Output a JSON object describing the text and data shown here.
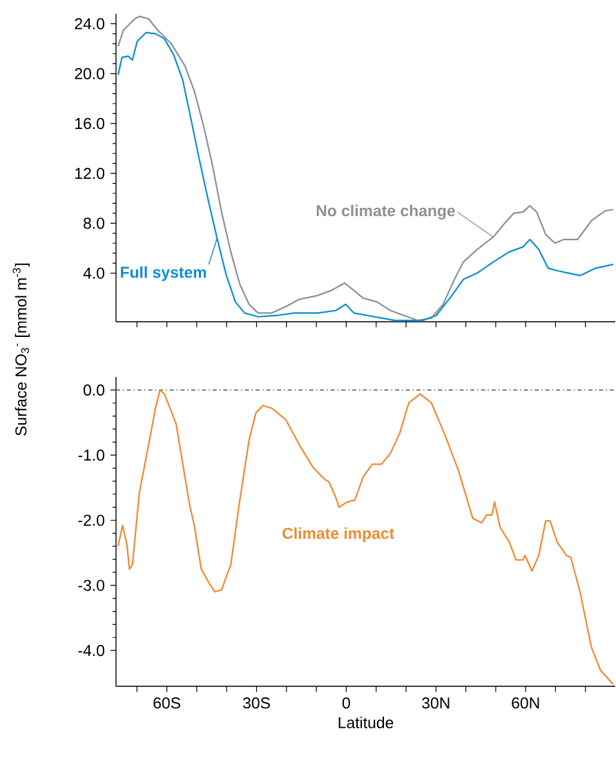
{
  "chart_data": [
    {
      "type": "line",
      "xlim": [
        -77,
        90
      ],
      "ylim": [
        0.1,
        24.8
      ],
      "tick_labels": "y",
      "marker": "none",
      "line_style": "solid",
      "xticks": [
        {
          "value": -70,
          "label": null
        },
        {
          "value": -60,
          "label": null
        },
        {
          "value": -50,
          "label": null
        },
        {
          "value": -40,
          "label": null
        },
        {
          "value": -30,
          "label": null
        },
        {
          "value": -20,
          "label": null
        },
        {
          "value": -10,
          "label": null
        },
        {
          "value": 0,
          "label": null
        },
        {
          "value": 10,
          "label": null
        },
        {
          "value": 20,
          "label": null
        },
        {
          "value": 30,
          "label": null
        },
        {
          "value": 40,
          "label": null
        },
        {
          "value": 50,
          "label": null
        },
        {
          "value": 60,
          "label": null
        },
        {
          "value": 70,
          "label": null
        },
        {
          "value": 80,
          "label": null
        }
      ],
      "yticks": [
        {
          "value": 4,
          "label": "4.0"
        },
        {
          "value": 8,
          "label": "8.0"
        },
        {
          "value": 12,
          "label": "12.0"
        },
        {
          "value": 16,
          "label": "16.0"
        },
        {
          "value": 20,
          "label": "20.0"
        },
        {
          "value": 24,
          "label": "24.0"
        }
      ],
      "series": [
        {
          "name": "No climate change",
          "color": "#8e9096",
          "x": [
            -76.3,
            -74.5,
            -70.7,
            -69.2,
            -66.1,
            -63.1,
            -58.5,
            -53.9,
            -50.8,
            -47.8,
            -44.7,
            -41.7,
            -38.6,
            -35.6,
            -32.5,
            -29.5,
            -24.9,
            -20.3,
            -15.7,
            -9.6,
            -5.1,
            -0.5,
            2.6,
            5.6,
            10.2,
            14.8,
            19.4,
            24.0,
            28.5,
            32.4,
            36.2,
            39.2,
            43.8,
            49.2,
            53.0,
            56.0,
            59.1,
            61.4,
            63.7,
            66.7,
            69.8,
            72.8,
            77.4,
            82.0,
            86.6,
            89.3
          ],
          "values": [
            22.2,
            23.5,
            24.4,
            24.6,
            24.4,
            23.5,
            22.4,
            20.6,
            18.6,
            15.9,
            12.6,
            8.9,
            5.7,
            3.1,
            1.5,
            0.8,
            0.8,
            1.3,
            1.9,
            2.2,
            2.6,
            3.2,
            2.6,
            2.0,
            1.7,
            1.0,
            0.6,
            0.2,
            0.4,
            1.5,
            3.5,
            4.9,
            5.9,
            6.9,
            8.0,
            8.8,
            8.9,
            9.4,
            8.9,
            7.1,
            6.4,
            6.7,
            6.7,
            8.2,
            9.0,
            9.1
          ]
        },
        {
          "name": "Full system",
          "color": "#0f8fd0",
          "x": [
            -76.3,
            -75.0,
            -73.0,
            -71.5,
            -69.9,
            -66.9,
            -63.8,
            -60.8,
            -57.7,
            -54.7,
            -52.4,
            -49.3,
            -46.3,
            -43.2,
            -40.2,
            -37.1,
            -34.0,
            -29.5,
            -23.4,
            -17.3,
            -9.6,
            -3.5,
            -0.2,
            2.6,
            7.2,
            11.8,
            16.3,
            25.4,
            30.1,
            34.7,
            39.2,
            43.8,
            49.2,
            54.5,
            59.1,
            61.4,
            64.4,
            67.5,
            70.5,
            74.4,
            78.2,
            83.5,
            89.3
          ],
          "values": [
            19.9,
            21.3,
            21.4,
            21.1,
            22.6,
            23.3,
            23.2,
            22.8,
            21.5,
            19.5,
            16.9,
            13.3,
            10.0,
            6.8,
            3.9,
            1.7,
            0.8,
            0.5,
            0.6,
            0.8,
            0.8,
            1.0,
            1.5,
            0.8,
            0.6,
            0.4,
            0.2,
            0.2,
            0.6,
            2.0,
            3.5,
            4.0,
            4.9,
            5.7,
            6.1,
            6.7,
            5.9,
            4.4,
            4.2,
            4.0,
            3.8,
            4.4,
            4.7
          ]
        }
      ]
    },
    {
      "type": "line",
      "xlim": [
        -77,
        90
      ],
      "ylim": [
        -4.55,
        0.2
      ],
      "marker": "none",
      "line_style": "solid",
      "xlabel": "Latitude",
      "ylabel": "Surface NO$_{3}$$^{-}$ [mmol m$^{-3}$]",
      "xticks": [
        {
          "value": -70,
          "label": null
        },
        {
          "value": -60,
          "label": "60S"
        },
        {
          "value": -50,
          "label": null
        },
        {
          "value": -40,
          "label": null
        },
        {
          "value": -30,
          "label": "30S"
        },
        {
          "value": -20,
          "label": null
        },
        {
          "value": -10,
          "label": null
        },
        {
          "value": 0,
          "label": "0"
        },
        {
          "value": 10,
          "label": null
        },
        {
          "value": 20,
          "label": null
        },
        {
          "value": 30,
          "label": "30N"
        },
        {
          "value": 40,
          "label": null
        },
        {
          "value": 50,
          "label": null
        },
        {
          "value": 60,
          "label": "60N"
        },
        {
          "value": 70,
          "label": null
        },
        {
          "value": 80,
          "label": null
        }
      ],
      "yticks": [
        {
          "value": 0,
          "label": "0.0"
        },
        {
          "value": -1,
          "label": "-1.0"
        },
        {
          "value": -2,
          "label": "-2.0"
        },
        {
          "value": -3,
          "label": "-3.0"
        },
        {
          "value": -4,
          "label": "-4.0"
        }
      ],
      "ref_lines": [
        {
          "axis": "y",
          "value": 0,
          "color": "#6d6e70",
          "line_style": "dashed"
        }
      ],
      "series": [
        {
          "name": "Climate impact",
          "color": "#f08a30",
          "x": [
            -76.3,
            -74.8,
            -73.4,
            -72.5,
            -71.5,
            -69.2,
            -66.1,
            -63.8,
            -62.3,
            -60.8,
            -56.9,
            -52.4,
            -50.8,
            -48.5,
            -46.3,
            -44.0,
            -41.7,
            -38.6,
            -35.6,
            -32.5,
            -30.2,
            -27.9,
            -24.9,
            -20.3,
            -15.7,
            -11.1,
            -7.3,
            -5.8,
            -3.5,
            -2.4,
            0.3,
            2.9,
            5.6,
            8.7,
            11.8,
            14.8,
            17.9,
            20.9,
            24.7,
            28.5,
            33.1,
            37.7,
            42.3,
            45.3,
            46.9,
            48.7,
            49.6,
            51.5,
            54.5,
            56.8,
            59.1,
            59.8,
            62.1,
            64.4,
            66.7,
            68.2,
            70.5,
            73.6,
            75.1,
            78.2,
            82.0,
            85.0,
            89.3
          ],
          "values": [
            -2.4,
            -2.08,
            -2.36,
            -2.75,
            -2.68,
            -1.58,
            -0.84,
            -0.28,
            0.0,
            -0.06,
            -0.52,
            -1.76,
            -2.08,
            -2.75,
            -2.93,
            -3.1,
            -3.07,
            -2.68,
            -1.69,
            -0.77,
            -0.35,
            -0.24,
            -0.28,
            -0.45,
            -0.84,
            -1.19,
            -1.37,
            -1.41,
            -1.65,
            -1.8,
            -1.72,
            -1.69,
            -1.34,
            -1.14,
            -1.14,
            -0.97,
            -0.66,
            -0.2,
            -0.06,
            -0.2,
            -0.7,
            -1.26,
            -1.97,
            -2.04,
            -1.92,
            -1.92,
            -1.72,
            -2.11,
            -2.33,
            -2.61,
            -2.61,
            -2.54,
            -2.78,
            -2.54,
            -2.01,
            -2.01,
            -2.33,
            -2.54,
            -2.57,
            -3.1,
            -3.95,
            -4.3,
            -4.52
          ]
        }
      ]
    }
  ]
}
